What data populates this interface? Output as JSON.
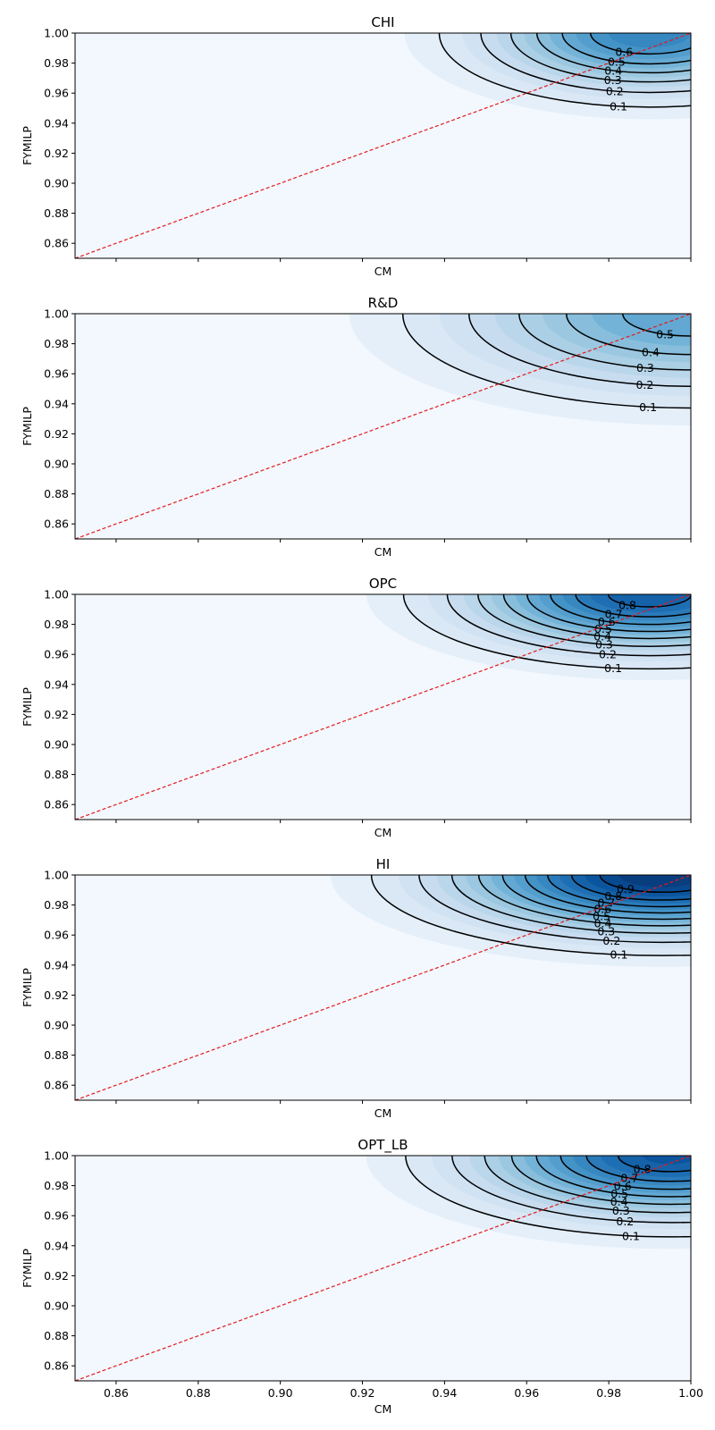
{
  "chart_data": [
    {
      "type": "contour",
      "title": "CHI",
      "xlabel": "CM",
      "ylabel": "FYMILP",
      "xlim": [
        0.85,
        1.0
      ],
      "ylim": [
        0.85,
        1.0
      ],
      "xticks": [
        "0.86",
        "0.88",
        "0.90",
        "0.92",
        "0.94",
        "0.96",
        "0.98",
        "1.00"
      ],
      "yticks": [
        "0.86",
        "0.88",
        "0.90",
        "0.92",
        "0.94",
        "0.96",
        "0.98",
        "1.00"
      ],
      "show_xtick_labels": false,
      "peak": {
        "x": 0.99,
        "y": 1.0,
        "value": 0.7
      },
      "spread": {
        "x": 0.026,
        "y": 0.025
      },
      "contour_levels": [
        0.1,
        0.2,
        0.3,
        0.4,
        0.5,
        0.6
      ],
      "contour_labels": [
        "0.1",
        "0.2",
        "0.3",
        "0.4",
        "0.5",
        "0.6"
      ],
      "reference_line": {
        "from": [
          0.85,
          0.85
        ],
        "to": [
          1.0,
          1.0
        ],
        "color": "#e31a1c",
        "style": "dashed"
      },
      "colormap": "Blues"
    },
    {
      "type": "contour",
      "title": "R&D",
      "xlabel": "CM",
      "ylabel": "FYMILP",
      "xlim": [
        0.85,
        1.0
      ],
      "ylim": [
        0.85,
        1.0
      ],
      "xticks": [
        "0.86",
        "0.88",
        "0.90",
        "0.92",
        "0.94",
        "0.96",
        "0.98",
        "1.00"
      ],
      "yticks": [
        "0.86",
        "0.88",
        "0.90",
        "0.92",
        "0.94",
        "0.96",
        "0.98",
        "1.00"
      ],
      "show_xtick_labels": false,
      "peak": {
        "x": 1.0,
        "y": 1.0,
        "value": 0.55
      },
      "spread": {
        "x": 0.038,
        "y": 0.034
      },
      "contour_levels": [
        0.1,
        0.2,
        0.3,
        0.4,
        0.5
      ],
      "contour_labels": [
        "0.1",
        "0.2",
        "0.3",
        "0.4",
        "0.5"
      ],
      "reference_line": {
        "from": [
          0.85,
          0.85
        ],
        "to": [
          1.0,
          1.0
        ],
        "color": "#e31a1c",
        "style": "dashed"
      },
      "colormap": "Blues"
    },
    {
      "type": "contour",
      "title": "OPC",
      "xlabel": "CM",
      "ylabel": "FYMILP",
      "xlim": [
        0.85,
        1.0
      ],
      "ylim": [
        0.85,
        1.0
      ],
      "xticks": [
        "0.86",
        "0.88",
        "0.90",
        "0.92",
        "0.94",
        "0.96",
        "0.98",
        "1.00"
      ],
      "yticks": [
        "0.86",
        "0.88",
        "0.90",
        "0.92",
        "0.94",
        "0.96",
        "0.98",
        "1.00"
      ],
      "show_xtick_labels": false,
      "peak": {
        "x": 0.99,
        "y": 1.0,
        "value": 0.85
      },
      "spread": {
        "x": 0.029,
        "y": 0.024
      },
      "contour_levels": [
        0.1,
        0.2,
        0.3,
        0.4,
        0.5,
        0.6,
        0.7,
        0.8
      ],
      "contour_labels": [
        "0.1",
        "0.2",
        "0.3",
        "0.4",
        "0.5",
        "0.6",
        "0.7",
        "0.8"
      ],
      "reference_line": {
        "from": [
          0.85,
          0.85
        ],
        "to": [
          1.0,
          1.0
        ],
        "color": "#e31a1c",
        "style": "dashed"
      },
      "colormap": "Blues"
    },
    {
      "type": "contour",
      "title": "HI",
      "xlabel": "CM",
      "ylabel": "FYMILP",
      "xlim": [
        0.85,
        1.0
      ],
      "ylim": [
        0.85,
        1.0
      ],
      "xticks": [
        "0.86",
        "0.88",
        "0.90",
        "0.92",
        "0.94",
        "0.96",
        "0.98",
        "1.00"
      ],
      "yticks": [
        "0.86",
        "0.88",
        "0.90",
        "0.92",
        "0.94",
        "0.96",
        "0.98",
        "1.00"
      ],
      "show_xtick_labels": false,
      "peak": {
        "x": 0.993,
        "y": 1.0,
        "value": 1.0
      },
      "spread": {
        "x": 0.033,
        "y": 0.025
      },
      "contour_levels": [
        0.1,
        0.2,
        0.3,
        0.4,
        0.5,
        0.6,
        0.7,
        0.8,
        0.9
      ],
      "contour_labels": [
        "0.1",
        "0.2",
        "0.3",
        "0.4",
        "0.5",
        "0.6",
        "0.7",
        "0.8",
        "0.9"
      ],
      "reference_line": {
        "from": [
          0.85,
          0.85
        ],
        "to": [
          1.0,
          1.0
        ],
        "color": "#e31a1c",
        "style": "dashed"
      },
      "colormap": "Blues"
    },
    {
      "type": "contour",
      "title": "OPT_LB",
      "xlabel": "CM",
      "ylabel": "FYMILP",
      "xlim": [
        0.85,
        1.0
      ],
      "ylim": [
        0.85,
        1.0
      ],
      "xticks": [
        "0.86",
        "0.88",
        "0.90",
        "0.92",
        "0.94",
        "0.96",
        "0.98",
        "1.00"
      ],
      "yticks": [
        "0.86",
        "0.88",
        "0.90",
        "0.92",
        "0.94",
        "0.96",
        "0.98",
        "1.00"
      ],
      "show_xtick_labels": true,
      "peak": {
        "x": 0.995,
        "y": 1.0,
        "value": 0.87
      },
      "spread": {
        "x": 0.031,
        "y": 0.026
      },
      "contour_levels": [
        0.1,
        0.2,
        0.3,
        0.4,
        0.5,
        0.6,
        0.7,
        0.8
      ],
      "contour_labels": [
        "0.1",
        "0.2",
        "0.3",
        "0.4",
        "0.5",
        "0.6",
        "0.7",
        "0.8"
      ],
      "reference_line": {
        "from": [
          0.85,
          0.85
        ],
        "to": [
          1.0,
          1.0
        ],
        "color": "#e31a1c",
        "style": "dashed"
      },
      "colormap": "Blues"
    }
  ]
}
